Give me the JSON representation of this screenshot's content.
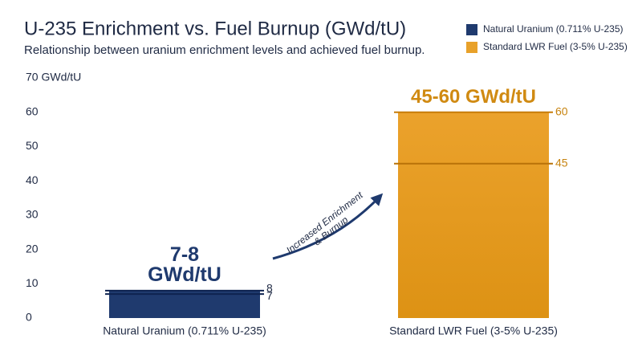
{
  "chart_data": {
    "type": "range_bar",
    "title": "U-235 Enrichment vs. Fuel Burnup (GWd/tU)",
    "subtitle": "Relationship between uranium enrichment levels and achieved fuel burnup.",
    "categories": [
      "Natural Uranium (0.711% U-235)",
      "Standard LWR Fuel (3-5% U-235)"
    ],
    "low": [
      7,
      45
    ],
    "high": [
      8,
      60
    ],
    "value_labels": [
      "7-8 GWd/tU",
      "45-60 GWd/tU"
    ],
    "colors": [
      "#1f3a6e",
      "#e8a12a"
    ],
    "legend": [
      "Natural Uranium (0.711% U-235)",
      "Standard LWR Fuel (3-5% U-235)"
    ],
    "legend_position": "upper right",
    "annotation": "Increased Enrichment & Burnup",
    "ylim": [
      0,
      70
    ],
    "yticks": [
      0,
      10,
      20,
      30,
      40,
      50,
      60,
      {
        "value": 70,
        "label": "70 GWd/tU"
      }
    ],
    "grid": false
  }
}
